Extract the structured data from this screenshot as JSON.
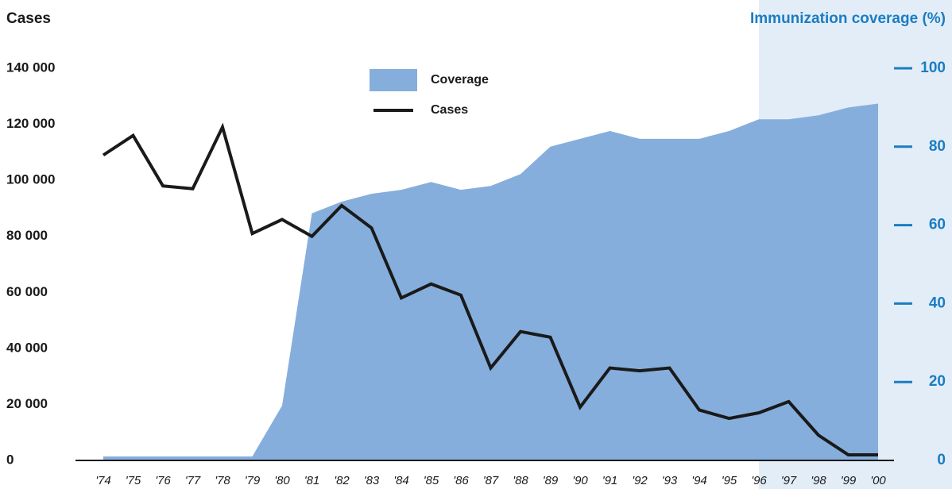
{
  "chart_data": {
    "type": "line-area",
    "y_label": "Cases",
    "y2_label": "Immunization coverage (%)",
    "categories": [
      "'74",
      "'75",
      "'76",
      "'77",
      "'78",
      "'79",
      "'80",
      "'81",
      "'82",
      "'83",
      "'84",
      "'85",
      "'86",
      "'87",
      "'88",
      "'89",
      "'90",
      "'91",
      "'92",
      "'93",
      "'94",
      "'95",
      "'96",
      "'97",
      "'98",
      "'99",
      "'00"
    ],
    "series": [
      {
        "name": "Coverage",
        "type": "area",
        "axis": "y2",
        "color": "#85aedc",
        "values": [
          1,
          1,
          1,
          1,
          1,
          1,
          14,
          63,
          66,
          68,
          69,
          71,
          69,
          70,
          73,
          80,
          82,
          84,
          82,
          82,
          82,
          84,
          87,
          87,
          88,
          90,
          91
        ]
      },
      {
        "name": "Cases",
        "type": "line",
        "axis": "y",
        "color": "#1a1a1a",
        "values": [
          109000,
          116000,
          98000,
          97000,
          119000,
          81000,
          86000,
          80000,
          91000,
          83000,
          58000,
          63000,
          59000,
          33000,
          46000,
          44000,
          19000,
          33000,
          32000,
          33000,
          18000,
          15000,
          17000,
          21000,
          9000,
          2000,
          2000
        ]
      }
    ],
    "ylim": [
      0,
      140000
    ],
    "yticks": [
      0,
      {
        "value": 20000,
        "label": "20 000"
      },
      {
        "value": 40000,
        "label": "40 000"
      },
      {
        "value": 60000,
        "label": "60 000"
      },
      {
        "value": 80000,
        "label": "80 000"
      },
      {
        "value": 100000,
        "label": "100 000"
      },
      {
        "value": 120000,
        "label": "120 000"
      },
      {
        "value": 140000,
        "label": "140 000"
      }
    ],
    "y2lim": [
      0,
      100
    ],
    "y2ticks": [
      0,
      20,
      40,
      60,
      80,
      100
    ]
  }
}
